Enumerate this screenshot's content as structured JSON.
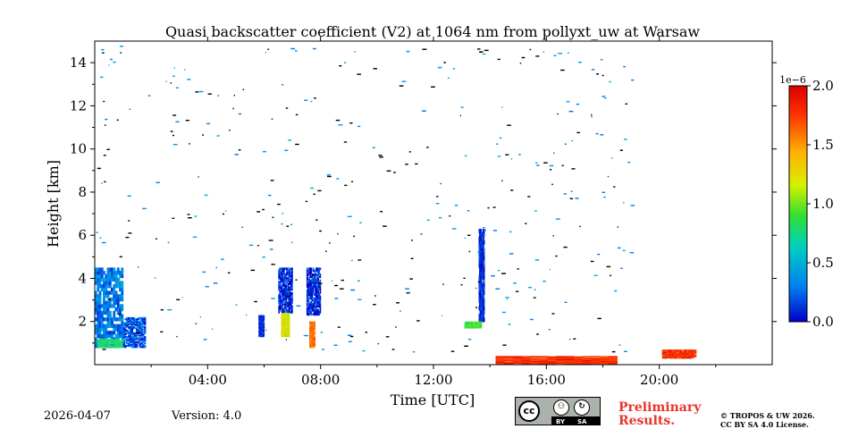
{
  "chart_data": {
    "type": "heatmap",
    "title": "Quasi backscatter coefficient (V2) at 1064 nm from pollyxt_uw at Warsaw",
    "xlabel": "Time [UTC]",
    "ylabel": "Height [km]",
    "xlim": [
      0,
      24
    ],
    "ylim": [
      0,
      15
    ],
    "xticks": [
      4,
      8,
      12,
      16,
      20
    ],
    "xtick_labels": [
      "04:00",
      "08:00",
      "12:00",
      "16:00",
      "20:00"
    ],
    "yticks": [
      2,
      4,
      6,
      8,
      10,
      12,
      14
    ],
    "ytick_labels": [
      "2",
      "4",
      "6",
      "8",
      "10",
      "12",
      "14"
    ],
    "colorbar": {
      "min": 0.0,
      "max": 2.0,
      "exponent_label": "1e−6",
      "ticks": [
        0.0,
        0.5,
        1.0,
        1.5,
        2.0
      ],
      "tick_labels": [
        "0.0",
        "0.5",
        "1.0",
        "1.5",
        "2.0"
      ],
      "colors": [
        "#0000c8",
        "#0090f0",
        "#00d8a0",
        "#30e030",
        "#d8f000",
        "#ffb000",
        "#ff3000",
        "#d80000"
      ]
    },
    "features": [
      {
        "name": "early-aerosol-column",
        "t0": 0.0,
        "t1": 1.0,
        "h0": 0.8,
        "h1": 4.5,
        "value": 0.3
      },
      {
        "name": "early-aerosol-base",
        "t0": 0.1,
        "t1": 1.0,
        "h0": 0.8,
        "h1": 1.2,
        "value": 0.8
      },
      {
        "name": "early-aerosol-tail",
        "t0": 1.0,
        "t1": 1.8,
        "h0": 0.8,
        "h1": 2.2,
        "value": 0.2
      },
      {
        "name": "plume-0630",
        "t0": 6.5,
        "t1": 7.0,
        "h0": 2.4,
        "h1": 4.5,
        "value": 0.1
      },
      {
        "name": "plume-0630-base",
        "t0": 6.6,
        "t1": 6.9,
        "h0": 1.3,
        "h1": 2.4,
        "value": 1.2
      },
      {
        "name": "plume-0545",
        "t0": 5.8,
        "t1": 6.0,
        "h0": 1.3,
        "h1": 2.3,
        "value": 0.1
      },
      {
        "name": "plume-0730",
        "t0": 7.5,
        "t1": 8.0,
        "h0": 2.3,
        "h1": 4.5,
        "value": 0.1
      },
      {
        "name": "plume-0730-base",
        "t0": 7.6,
        "t1": 7.8,
        "h0": 0.8,
        "h1": 2.0,
        "value": 1.6
      },
      {
        "name": "column-1345",
        "t0": 13.6,
        "t1": 13.8,
        "h0": 2.0,
        "h1": 6.3,
        "value": 0.1
      },
      {
        "name": "layer-1330",
        "t0": 13.1,
        "t1": 13.7,
        "h0": 1.7,
        "h1": 2.0,
        "value": 0.9
      },
      {
        "name": "evening-surface-layer",
        "t0": 20.1,
        "t1": 21.3,
        "h0": 0.3,
        "h1": 0.7,
        "value": 1.8
      },
      {
        "name": "afternoon-surface-spots",
        "t0": 14.2,
        "t1": 18.5,
        "h0": 0.0,
        "h1": 0.4,
        "value": 1.8
      }
    ]
  },
  "footer": {
    "date": "2026-04-07",
    "version": "Version: 4.0",
    "preliminary_line1": "Preliminary",
    "preliminary_line2": "Results.",
    "copyright_line1": "© TROPOS & UW 2026.",
    "copyright_line2": "CC BY SA 4.0 License.",
    "license_icon_cc": "cc",
    "license_by": "BY",
    "license_sa": "SA",
    "license_by_icon": "person-icon",
    "license_sa_icon": "share-alike-icon"
  },
  "colors": {
    "preliminary": "#e8352b"
  }
}
